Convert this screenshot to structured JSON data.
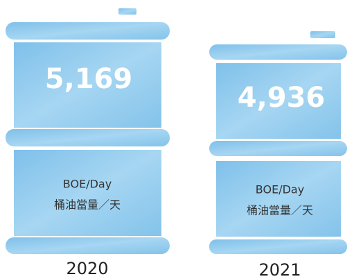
{
  "barrels": [
    {
      "value": "5,169",
      "unit": "BOE/Day",
      "unit_zh": "桶油當量／天",
      "year": "2020"
    },
    {
      "value": "4,936",
      "unit": "BOE/Day",
      "unit_zh": "桶油當量／天",
      "year": "2021"
    }
  ]
}
